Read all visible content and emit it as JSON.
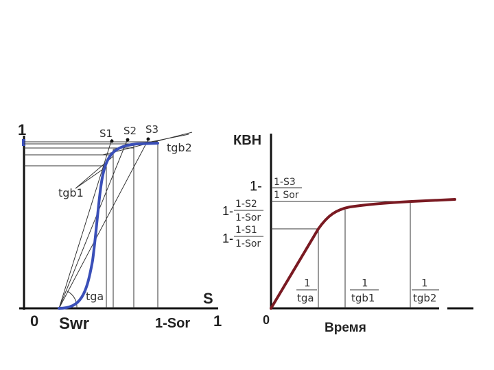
{
  "left_chart": {
    "y_top_label": "1",
    "origin_label": "0",
    "x_end_label": "1",
    "axis_name_s": "S",
    "swr_label": "Swr",
    "sor_label": "1-Sor",
    "s1_label": "S1",
    "s2_label": "S2",
    "s3_label": "S3",
    "tga_label": "tga",
    "tgb1_label": "tgb1",
    "tgb2_label": "tgb2",
    "curve_color": "#3a4fb8"
  },
  "right_chart": {
    "y_axis_label": "КВН",
    "origin_label": "0",
    "x_axis_label": "Время",
    "level3": {
      "prefix": "1-",
      "num": "1-S3",
      "den": "1 Sor"
    },
    "level2": {
      "prefix": "1-",
      "num": "1-S2",
      "den": "1-Sor"
    },
    "level1": {
      "prefix": "1-",
      "num": "1-S1",
      "den": "1-Sor"
    },
    "tick1": {
      "num": "1",
      "den": "tga"
    },
    "tick2": {
      "num": "1",
      "den": "tgb1"
    },
    "tick3": {
      "num": "1",
      "den": "tgb2"
    },
    "curve_color": "#7a1a22"
  }
}
